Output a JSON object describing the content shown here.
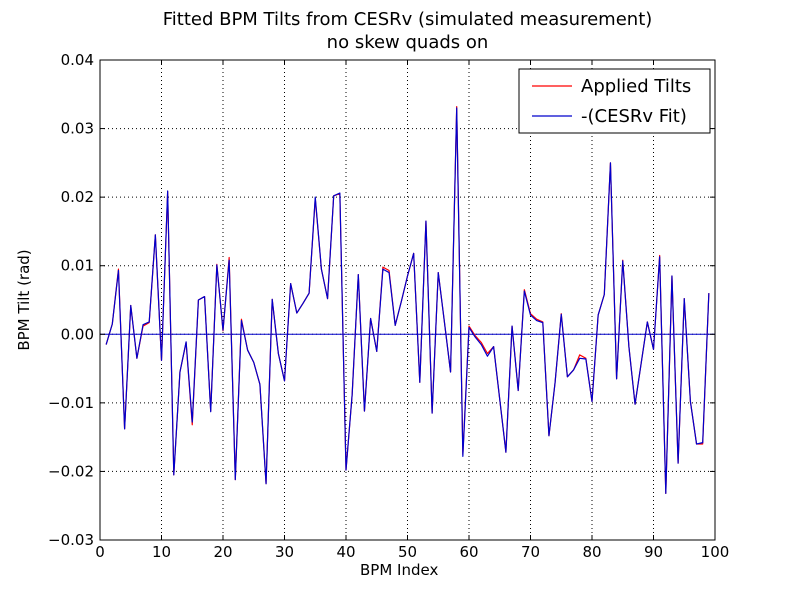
{
  "chart_data": {
    "type": "line",
    "title": "Fitted BPM Tilts from CESRv (simulated measurement)",
    "subtitle": "no skew quads on",
    "xlabel": "BPM Index",
    "ylabel": "BPM Tilt (rad)",
    "xlim": [
      0,
      100
    ],
    "ylim": [
      -0.03,
      0.04
    ],
    "xticks": [
      0,
      10,
      20,
      30,
      40,
      50,
      60,
      70,
      80,
      90,
      100
    ],
    "yticks": [
      -0.03,
      -0.02,
      -0.01,
      0.0,
      0.01,
      0.02,
      0.03,
      0.04
    ],
    "xtick_labels": [
      "0",
      "10",
      "20",
      "30",
      "40",
      "50",
      "60",
      "70",
      "80",
      "90",
      "100"
    ],
    "ytick_labels": [
      "−0.03",
      "−0.02",
      "−0.01",
      "0.00",
      "0.01",
      "0.02",
      "0.03",
      "0.04"
    ],
    "grid": true,
    "legend_position": "top-right",
    "zero_line": true,
    "x": [
      1,
      2,
      3,
      4,
      5,
      6,
      7,
      8,
      9,
      10,
      11,
      12,
      13,
      14,
      15,
      16,
      17,
      18,
      19,
      20,
      21,
      22,
      23,
      24,
      25,
      26,
      27,
      28,
      29,
      30,
      31,
      32,
      33,
      34,
      35,
      36,
      37,
      38,
      39,
      40,
      41,
      42,
      43,
      44,
      45,
      46,
      47,
      48,
      49,
      50,
      51,
      52,
      53,
      54,
      55,
      56,
      57,
      58,
      59,
      60,
      61,
      62,
      63,
      64,
      65,
      66,
      67,
      68,
      69,
      70,
      71,
      72,
      73,
      74,
      75,
      76,
      77,
      78,
      79,
      80,
      81,
      82,
      83,
      84,
      85,
      86,
      87,
      88,
      89,
      90,
      91,
      92,
      93,
      94,
      95,
      96,
      97,
      98,
      99
    ],
    "series": [
      {
        "name": "Applied Tilts",
        "color": "#ff0000",
        "values": [
          -0.0015,
          0.0015,
          0.0095,
          -0.0138,
          0.0042,
          -0.0035,
          0.0012,
          0.0017,
          0.0145,
          -0.0038,
          0.0208,
          -0.0205,
          -0.0055,
          -0.0012,
          -0.0132,
          0.005,
          0.0055,
          -0.0112,
          0.0102,
          0.0005,
          0.0112,
          -0.0212,
          0.0022,
          -0.0023,
          -0.0041,
          -0.0073,
          -0.0218,
          0.0051,
          -0.0028,
          -0.0068,
          0.0074,
          0.0031,
          0.0045,
          0.006,
          0.0198,
          0.0095,
          0.0052,
          0.0202,
          0.0205,
          -0.0198,
          -0.0088,
          0.0087,
          -0.0112,
          0.0023,
          -0.0025,
          0.0098,
          0.0093,
          0.0013,
          0.0048,
          0.0085,
          0.0118,
          -0.007,
          0.0165,
          -0.0115,
          0.009,
          0.0018,
          -0.0055,
          0.0332,
          -0.0175,
          0.0012,
          -0.0002,
          -0.0012,
          -0.0028,
          -0.0018,
          -0.0095,
          -0.0172,
          0.0012,
          -0.0082,
          0.0065,
          0.003,
          0.0022,
          0.0018,
          -0.0148,
          -0.007,
          0.003,
          -0.0062,
          -0.0052,
          -0.003,
          -0.0035,
          -0.0098,
          0.0028,
          0.0058,
          0.025,
          -0.0065,
          0.0108,
          -0.0018,
          -0.0102,
          -0.0042,
          0.0018,
          -0.0022,
          0.0115,
          -0.0232,
          0.0085,
          -0.0188,
          0.0052,
          -0.0098,
          -0.016,
          -0.016,
          0.006
        ]
      },
      {
        "name": "-(CESRv Fit)",
        "color": "#0000cc",
        "values": [
          -0.0015,
          0.0015,
          0.0093,
          -0.0138,
          0.0042,
          -0.0035,
          0.0014,
          0.0018,
          0.0145,
          -0.0038,
          0.0209,
          -0.0205,
          -0.0055,
          -0.0011,
          -0.0128,
          0.005,
          0.0055,
          -0.0113,
          0.0101,
          0.0006,
          0.0108,
          -0.0212,
          0.002,
          -0.0023,
          -0.0041,
          -0.0073,
          -0.0218,
          0.0051,
          -0.0028,
          -0.0068,
          0.0074,
          0.0031,
          0.0045,
          0.006,
          0.02,
          0.0095,
          0.0052,
          0.0202,
          0.0206,
          -0.0198,
          -0.0088,
          0.0087,
          -0.0112,
          0.0023,
          -0.0025,
          0.0095,
          0.009,
          0.0013,
          0.0048,
          0.0085,
          0.0118,
          -0.007,
          0.0165,
          -0.0115,
          0.009,
          0.0018,
          -0.0055,
          0.033,
          -0.0178,
          0.001,
          -0.0004,
          -0.0015,
          -0.0032,
          -0.0018,
          -0.0095,
          -0.0172,
          0.0012,
          -0.0082,
          0.0063,
          0.0028,
          0.002,
          0.0017,
          -0.0148,
          -0.007,
          0.0029,
          -0.0062,
          -0.0052,
          -0.0035,
          -0.0036,
          -0.0098,
          0.0028,
          0.0058,
          0.025,
          -0.0065,
          0.0107,
          -0.0018,
          -0.0102,
          -0.0042,
          0.0018,
          -0.0022,
          0.0113,
          -0.0232,
          0.0085,
          -0.0188,
          0.0052,
          -0.0098,
          -0.016,
          -0.0158,
          0.006
        ]
      }
    ]
  }
}
